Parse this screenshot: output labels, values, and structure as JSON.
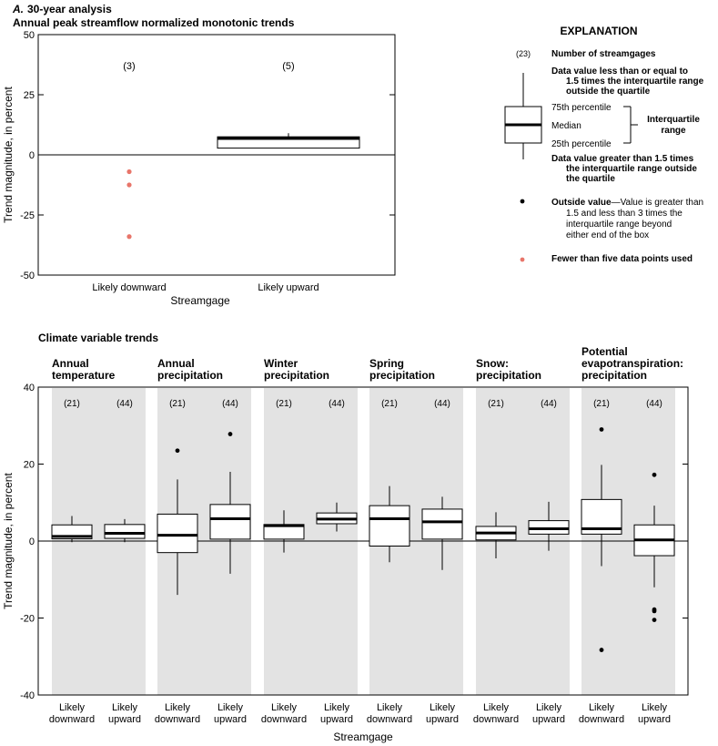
{
  "panel_label": "A.",
  "panel_title": "30-year analysis",
  "colors": {
    "outlier_few": "#e8756a",
    "shade": "#e3e3e3",
    "box_fill": "#ffffff",
    "line": "#000000"
  },
  "chart_data": [
    {
      "type": "box",
      "title": "Annual peak streamflow normalized monotonic trends",
      "xlabel": "Streamgage",
      "ylabel": "Trend magnitude, in percent",
      "ylim": [
        -50,
        50
      ],
      "yticks": [
        "50",
        "25",
        "0",
        "-25",
        "-50"
      ],
      "grid": false,
      "categories": [
        "Likely downward",
        "Likely upward"
      ],
      "groups": [
        {
          "category": "Likely downward",
          "count_label": "(3)",
          "box": null,
          "few_points": [
            -7,
            -12.5,
            -34
          ]
        },
        {
          "category": "Likely upward",
          "count_label": "(5)",
          "box": {
            "whisker_low": 2.8,
            "q1": 2.8,
            "median": 6.8,
            "q3": 7.5,
            "whisker_high": 9
          },
          "few_points": []
        }
      ]
    },
    {
      "type": "box",
      "title": "Climate variable trends",
      "xlabel": "Streamgage",
      "ylabel": "Trend magnitude, in percent",
      "ylim": [
        -40,
        40
      ],
      "yticks": [
        "40",
        "20",
        "0",
        "-20",
        "-40"
      ],
      "grid": false,
      "panels": [
        {
          "title": [
            "Annual",
            "temperature"
          ],
          "groups": [
            {
              "category": [
                "Likely",
                "downward"
              ],
              "count_label": "(21)",
              "box": {
                "whisker_low": -0.3,
                "q1": 0.6,
                "median": 1.2,
                "q3": 4.2,
                "whisker_high": 6.5
              },
              "outside": []
            },
            {
              "category": [
                "Likely",
                "upward"
              ],
              "count_label": "(44)",
              "box": {
                "whisker_low": -0.3,
                "q1": 0.7,
                "median": 2.0,
                "q3": 4.3,
                "whisker_high": 5.7
              },
              "outside": []
            }
          ]
        },
        {
          "title": [
            "Annual",
            "precipitation"
          ],
          "groups": [
            {
              "category": [
                "Likely",
                "downward"
              ],
              "count_label": "(21)",
              "box": {
                "whisker_low": -14,
                "q1": -3,
                "median": 1.5,
                "q3": 7,
                "whisker_high": 16
              },
              "outside": [
                23.5
              ]
            },
            {
              "category": [
                "Likely",
                "upward"
              ],
              "count_label": "(44)",
              "box": {
                "whisker_low": -8.5,
                "q1": 0.5,
                "median": 5.8,
                "q3": 9.5,
                "whisker_high": 18
              },
              "outside": [
                27.8
              ]
            }
          ]
        },
        {
          "title": [
            "Winter",
            "precipitation"
          ],
          "groups": [
            {
              "category": [
                "Likely",
                "downward"
              ],
              "count_label": "(21)",
              "box": {
                "whisker_low": -3,
                "q1": 0.5,
                "median": 4,
                "q3": 4.3,
                "whisker_high": 8
              },
              "outside": []
            },
            {
              "category": [
                "Likely",
                "upward"
              ],
              "count_label": "(44)",
              "box": {
                "whisker_low": 2.5,
                "q1": 4.5,
                "median": 5.7,
                "q3": 7.3,
                "whisker_high": 10
              },
              "outside": []
            }
          ]
        },
        {
          "title": [
            "Spring",
            "precipitation"
          ],
          "groups": [
            {
              "category": [
                "Likely",
                "downward"
              ],
              "count_label": "(21)",
              "box": {
                "whisker_low": -5.5,
                "q1": -1.3,
                "median": 5.8,
                "q3": 9.2,
                "whisker_high": 14.3
              },
              "outside": []
            },
            {
              "category": [
                "Likely",
                "upward"
              ],
              "count_label": "(44)",
              "box": {
                "whisker_low": -7.5,
                "q1": 0.5,
                "median": 5,
                "q3": 8.3,
                "whisker_high": 11.5
              },
              "outside": []
            }
          ]
        },
        {
          "title": [
            "Snow:",
            "precipitation"
          ],
          "groups": [
            {
              "category": [
                "Likely",
                "downward"
              ],
              "count_label": "(21)",
              "box": {
                "whisker_low": -4.5,
                "q1": 0.3,
                "median": 2.1,
                "q3": 3.8,
                "whisker_high": 7.5
              },
              "outside": []
            },
            {
              "category": [
                "Likely",
                "upward"
              ],
              "count_label": "(44)",
              "box": {
                "whisker_low": -2.5,
                "q1": 1.8,
                "median": 3.2,
                "q3": 5.3,
                "whisker_high": 10.2
              },
              "outside": []
            }
          ]
        },
        {
          "title": [
            "Potential",
            "evapotranspiration:",
            "precipitation"
          ],
          "groups": [
            {
              "category": [
                "Likely",
                "downward"
              ],
              "count_label": "(21)",
              "box": {
                "whisker_low": -6.5,
                "q1": 1.8,
                "median": 3.2,
                "q3": 10.8,
                "whisker_high": 19.8
              },
              "outside": [
                29,
                -28.3
              ]
            },
            {
              "category": [
                "Likely",
                "upward"
              ],
              "count_label": "(44)",
              "box": {
                "whisker_low": -12,
                "q1": -3.8,
                "median": 0.3,
                "q3": 4.2,
                "whisker_high": 9.2
              },
              "outside": [
                17.2,
                -17.8,
                -18.2,
                -20.5
              ]
            }
          ]
        }
      ]
    }
  ],
  "explanation": {
    "heading": "EXPLANATION",
    "example_count": "(23)",
    "number_of_streamgages": "Number of streamgages",
    "upper_whisker": [
      "Data value less than or equal to",
      "1.5 times the interquartile range",
      "outside the quartile"
    ],
    "p75": "75th percentile",
    "median": "Median",
    "p25": "25th percentile",
    "iqr": [
      "Interquartile",
      "range"
    ],
    "lower_whisker": [
      "Data value greater than 1.5 times",
      "the interquartile range outside",
      "the quartile"
    ],
    "outside_bold": "Outside value",
    "outside_rest": [
      "—Value is greater than",
      "1.5 and less than 3 times the",
      "interquartile range beyond",
      "either end of the box"
    ],
    "few_points": "Fewer than five data points used"
  }
}
